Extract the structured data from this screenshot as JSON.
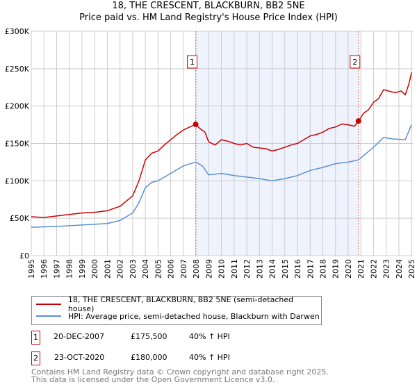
{
  "header": {
    "title": "18, THE CRESCENT, BLACKBURN, BB2 5NE",
    "subtitle": "Price paid vs. HM Land Registry's House Price Index (HPI)"
  },
  "chart_data": {
    "type": "line",
    "title": "18, THE CRESCENT, BLACKBURN, BB2 5NE",
    "subtitle": "Price paid vs. HM Land Registry's House Price Index (HPI)",
    "xlim": [
      1995,
      2025.1
    ],
    "ylim": [
      0,
      300000
    ],
    "x_ticks": [
      "1995",
      "1996",
      "1997",
      "1998",
      "1999",
      "2000",
      "2001",
      "2002",
      "2003",
      "2004",
      "2005",
      "2006",
      "2007",
      "2008",
      "2009",
      "2010",
      "2011",
      "2012",
      "2013",
      "2014",
      "2015",
      "2016",
      "2017",
      "2018",
      "2019",
      "2020",
      "2021",
      "2022",
      "2023",
      "2024",
      "2025"
    ],
    "y_ticks": [
      {
        "v": 0,
        "label": "£0"
      },
      {
        "v": 50000,
        "label": "£50K"
      },
      {
        "v": 100000,
        "label": "£100K"
      },
      {
        "v": 150000,
        "label": "£150K"
      },
      {
        "v": 200000,
        "label": "£200K"
      },
      {
        "v": 250000,
        "label": "£250K"
      },
      {
        "v": 300000,
        "label": "£300K"
      }
    ],
    "grid": true,
    "shaded_range": [
      2007.97,
      2020.81
    ],
    "series": [
      {
        "name": "18, THE CRESCENT, BLACKBURN, BB2 5NE (semi-detached house)",
        "color": "#cc0000",
        "x": [
          1995,
          1996,
          1997,
          1998,
          1999,
          2000,
          2001,
          2002,
          2003,
          2003.5,
          2004,
          2004.5,
          2005,
          2005.5,
          2006,
          2006.5,
          2007,
          2007.5,
          2007.97,
          2008.3,
          2008.7,
          2009,
          2009.5,
          2010,
          2010.5,
          2011,
          2011.5,
          2012,
          2012.5,
          2013,
          2013.5,
          2014,
          2014.5,
          2015,
          2015.5,
          2016,
          2016.5,
          2017,
          2017.5,
          2018,
          2018.5,
          2019,
          2019.5,
          2020,
          2020.5,
          2020.81,
          2021.2,
          2021.6,
          2022,
          2022.4,
          2022.8,
          2023.2,
          2023.7,
          2024.2,
          2024.5,
          2024.8,
          2025
        ],
        "y": [
          52000,
          51000,
          53000,
          55000,
          57000,
          58000,
          60000,
          66000,
          80000,
          100000,
          128000,
          137000,
          140000,
          148000,
          155000,
          162000,
          168000,
          172000,
          175500,
          170000,
          165000,
          152000,
          148000,
          155000,
          153000,
          150000,
          148000,
          150000,
          145000,
          144000,
          143000,
          140000,
          142000,
          145000,
          148000,
          150000,
          155000,
          160000,
          162000,
          165000,
          170000,
          172000,
          176000,
          175000,
          173000,
          180000,
          190000,
          195000,
          205000,
          210000,
          222000,
          220000,
          218000,
          220000,
          215000,
          230000,
          245000
        ]
      },
      {
        "name": "HPI: Average price, semi-detached house, Blackburn with Darwen",
        "color": "#5b8fd4",
        "x": [
          1995,
          1997,
          1999,
          2001,
          2002,
          2003,
          2003.5,
          2004,
          2004.5,
          2005,
          2006,
          2007,
          2007.97,
          2008.5,
          2009,
          2010,
          2011,
          2012,
          2013,
          2014,
          2015,
          2016,
          2017,
          2018,
          2019,
          2020,
          2020.81,
          2021.3,
          2022,
          2022.8,
          2023.5,
          2024.5,
          2025
        ],
        "y": [
          38000,
          39000,
          41000,
          43000,
          47000,
          57000,
          71000,
          91000,
          98000,
          100000,
          110000,
          120000,
          125000,
          120000,
          108000,
          110000,
          107000,
          105000,
          103000,
          100000,
          103000,
          107000,
          114000,
          118000,
          123000,
          125000,
          128000,
          135000,
          145000,
          158000,
          156000,
          155000,
          175000
        ]
      }
    ],
    "annotations": [
      {
        "label": "1",
        "x": 2007.97,
        "y": 175500
      },
      {
        "label": "2",
        "x": 2020.81,
        "y": 180000
      }
    ]
  },
  "legend": {
    "items": [
      "18, THE CRESCENT, BLACKBURN, BB2 5NE (semi-detached house)",
      "HPI: Average price, semi-detached house, Blackburn with Darwen"
    ]
  },
  "transactions": [
    {
      "num": "1",
      "date": "20-DEC-2007",
      "price": "£175,500",
      "hpi": "40% ↑ HPI"
    },
    {
      "num": "2",
      "date": "23-OCT-2020",
      "price": "£180,000",
      "hpi": "40% ↑ HPI"
    }
  ],
  "footer": {
    "line1": "Contains HM Land Registry data © Crown copyright and database right 2025.",
    "line2": "This data is licensed under the Open Government Licence v3.0."
  }
}
